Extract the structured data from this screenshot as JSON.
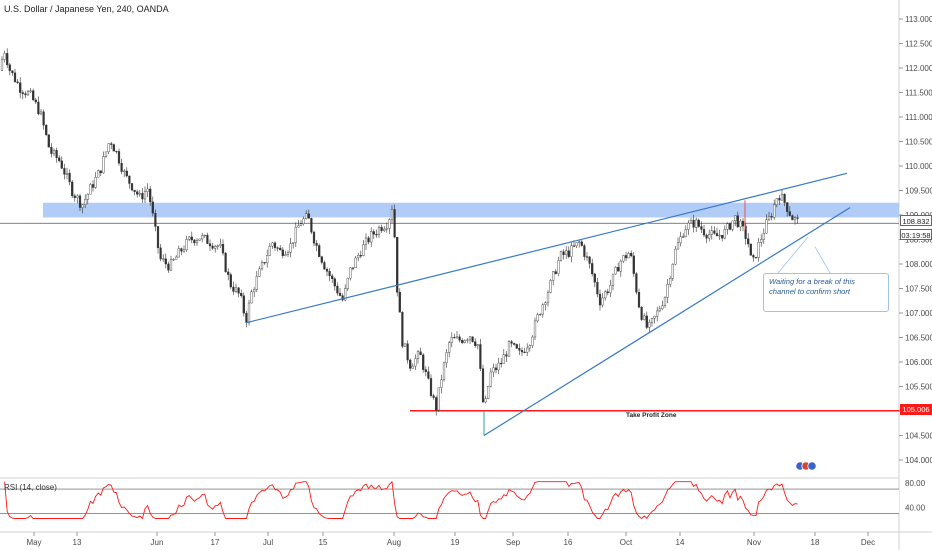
{
  "header": {
    "title": "U.S. Dollar / Japanese Yen, 240, OANDA"
  },
  "chart_data": {
    "type": "candlestick",
    "title": "U.S. Dollar / Japanese Yen, 240, OANDA",
    "y_ticks": [
      "113.000",
      "112.500",
      "112.000",
      "111.500",
      "111.000",
      "110.500",
      "110.000",
      "109.500",
      "109.000",
      "108.500",
      "108.000",
      "107.500",
      "107.000",
      "106.500",
      "106.000",
      "105.500",
      "105.000",
      "104.500",
      "104.000"
    ],
    "y_range": [
      103.8,
      113.2
    ],
    "x_ticks": [
      "May",
      "13",
      "Jun",
      "17",
      "Jul",
      "15",
      "Aug",
      "19",
      "Sep",
      "16",
      "Oct",
      "14",
      "Nov",
      "18",
      "Dec"
    ],
    "price_path": [
      [
        0,
        111.95
      ],
      [
        4,
        112.4
      ],
      [
        10,
        111.95
      ],
      [
        20,
        111.6
      ],
      [
        30,
        111.45
      ],
      [
        40,
        111.1
      ],
      [
        50,
        110.3
      ],
      [
        60,
        110.1
      ],
      [
        72,
        109.5
      ],
      [
        82,
        109.2
      ],
      [
        92,
        109.6
      ],
      [
        100,
        109.9
      ],
      [
        110,
        110.55
      ],
      [
        118,
        110.2
      ],
      [
        125,
        109.8
      ],
      [
        132,
        109.6
      ],
      [
        140,
        109.35
      ],
      [
        148,
        109.55
      ],
      [
        153,
        108.95
      ],
      [
        160,
        108.1
      ],
      [
        170,
        107.95
      ],
      [
        180,
        108.25
      ],
      [
        190,
        108.5
      ],
      [
        200,
        108.55
      ],
      [
        210,
        108.45
      ],
      [
        220,
        108.35
      ],
      [
        230,
        107.6
      ],
      [
        240,
        107.35
      ],
      [
        246,
        106.85
      ],
      [
        252,
        107.45
      ],
      [
        262,
        107.95
      ],
      [
        272,
        108.45
      ],
      [
        280,
        108.25
      ],
      [
        290,
        108.35
      ],
      [
        300,
        108.85
      ],
      [
        308,
        108.95
      ],
      [
        315,
        108.45
      ],
      [
        325,
        107.95
      ],
      [
        335,
        107.55
      ],
      [
        343,
        107.25
      ],
      [
        350,
        107.85
      ],
      [
        360,
        108.25
      ],
      [
        370,
        108.55
      ],
      [
        380,
        108.75
      ],
      [
        388,
        108.85
      ],
      [
        393,
        109.25
      ],
      [
        397,
        107.55
      ],
      [
        402,
        106.45
      ],
      [
        410,
        105.95
      ],
      [
        420,
        106.15
      ],
      [
        430,
        105.45
      ],
      [
        436,
        105.05
      ],
      [
        442,
        105.75
      ],
      [
        450,
        106.45
      ],
      [
        460,
        106.45
      ],
      [
        470,
        106.55
      ],
      [
        478,
        106.35
      ],
      [
        484,
        104.95
      ],
      [
        490,
        105.75
      ],
      [
        500,
        105.95
      ],
      [
        510,
        106.35
      ],
      [
        520,
        106.15
      ],
      [
        530,
        106.45
      ],
      [
        540,
        107.05
      ],
      [
        550,
        107.55
      ],
      [
        560,
        108.15
      ],
      [
        570,
        108.25
      ],
      [
        580,
        108.45
      ],
      [
        590,
        107.95
      ],
      [
        600,
        107.25
      ],
      [
        610,
        107.55
      ],
      [
        620,
        108.05
      ],
      [
        630,
        108.25
      ],
      [
        640,
        107.05
      ],
      [
        648,
        106.65
      ],
      [
        656,
        106.95
      ],
      [
        665,
        107.35
      ],
      [
        675,
        108.25
      ],
      [
        685,
        108.75
      ],
      [
        695,
        108.85
      ],
      [
        705,
        108.65
      ],
      [
        715,
        108.55
      ],
      [
        725,
        108.65
      ],
      [
        735,
        108.95
      ],
      [
        744,
        108.65
      ],
      [
        748,
        108.45
      ],
      [
        752,
        107.95
      ],
      [
        758,
        108.35
      ],
      [
        765,
        108.75
      ],
      [
        772,
        109.05
      ],
      [
        778,
        109.45
      ],
      [
        785,
        109.25
      ],
      [
        792,
        108.95
      ],
      [
        800,
        108.83
      ]
    ],
    "rsi": {
      "title": "RSI (14, close)",
      "y_ticks": [
        "80.00",
        "40.00"
      ],
      "levels": [
        70,
        30
      ]
    },
    "resistance_zone": [
      108.95,
      109.25
    ],
    "current_price": "108.832",
    "countdown": "03:19:58",
    "take_profit": {
      "price": "105.006",
      "label": "Take Profit Zone"
    },
    "annotation": "Waiting for a break of this channel to confirm short",
    "colors": {
      "up": "#26a69a",
      "down": "#ef5350",
      "zone": "#a9c7f5",
      "trend": "#3579c9",
      "tp": "#ff1a1a",
      "rsi": "#ff1a1a"
    }
  }
}
